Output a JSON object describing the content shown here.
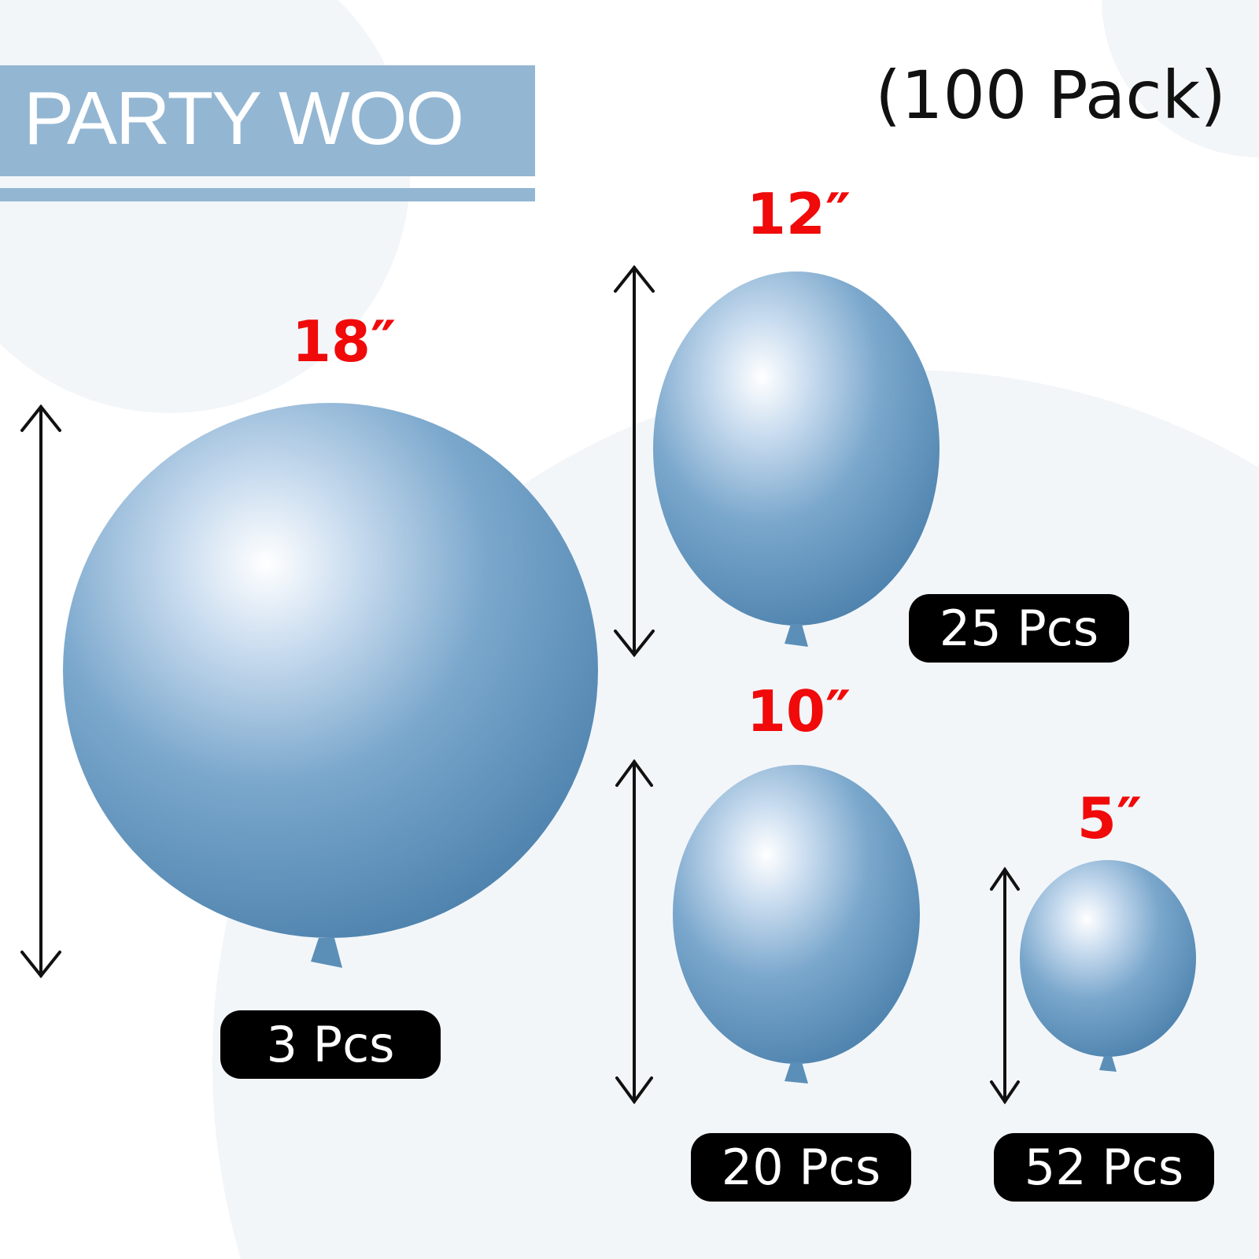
{
  "brand": {
    "logo_text": "PARTY WOO",
    "color": "#93b6d3"
  },
  "pack_label": "(100 Pack)",
  "accent_color": "#f00a0a",
  "balloon_color": "#5b8fb8",
  "balloons": [
    {
      "size": "18″",
      "count": "3 Pcs"
    },
    {
      "size": "12″",
      "count": "25 Pcs"
    },
    {
      "size": "10″",
      "count": "20 Pcs"
    },
    {
      "size": "5″",
      "count": "52 Pcs"
    }
  ]
}
